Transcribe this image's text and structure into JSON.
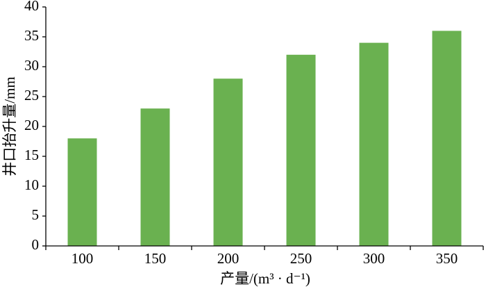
{
  "chart_data": {
    "type": "bar",
    "x_label": "产量/(m³ · d⁻¹)",
    "y_label": "井口抬升量/mm",
    "categories": [
      "100",
      "150",
      "200",
      "250",
      "300",
      "350"
    ],
    "values": [
      18,
      23,
      28,
      32,
      34,
      36
    ],
    "color": "#6ab150",
    "ylim": [
      0,
      40
    ],
    "yticks": [
      0,
      5,
      10,
      15,
      20,
      25,
      30,
      35,
      40
    ],
    "grid": false
  }
}
